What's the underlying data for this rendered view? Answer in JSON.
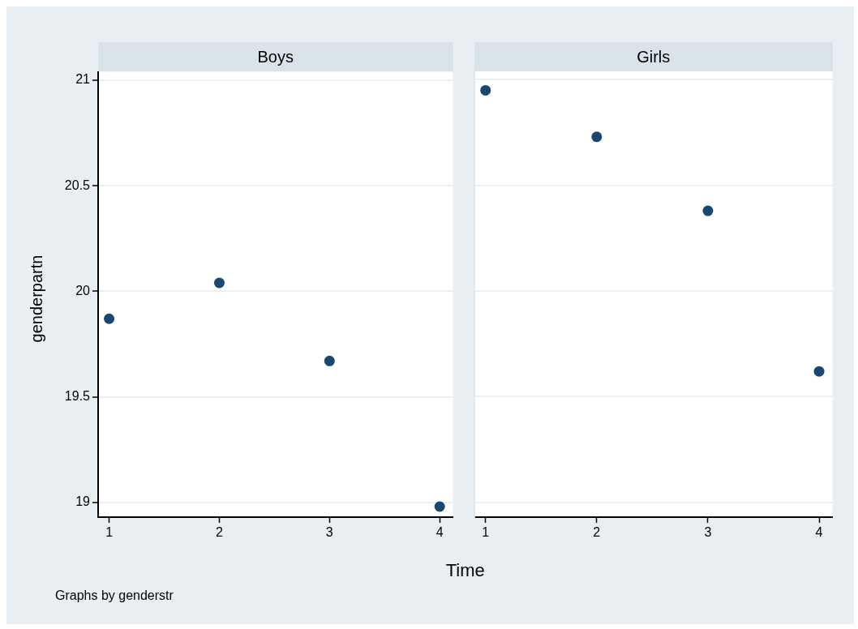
{
  "chart_data": [
    {
      "type": "scatter",
      "title": "Boys",
      "xlabel": "Time",
      "ylabel": "genderpartn",
      "annotations": [
        "Graphs by genderstr"
      ],
      "x": [
        1,
        2,
        3,
        4
      ],
      "series": [
        {
          "color": "#1a476f",
          "values": [
            19.87,
            20.04,
            19.67,
            18.98
          ]
        }
      ],
      "xlim": [
        0.9,
        4.12
      ],
      "xticks": [
        1,
        2,
        3,
        4
      ],
      "ylim": [
        18.93,
        21.04
      ],
      "yticks": [
        19,
        19.5,
        20,
        20.5,
        21
      ],
      "grid": "y",
      "legend": false,
      "marker": "circle"
    },
    {
      "type": "scatter",
      "title": "Girls",
      "x": [
        1,
        2,
        3,
        4
      ],
      "series": [
        {
          "color": "#1a476f",
          "values": [
            20.95,
            20.73,
            20.38,
            19.62
          ]
        }
      ],
      "xlim": [
        0.9,
        4.12
      ],
      "xticks": [
        1,
        2,
        3,
        4
      ],
      "ylim": [
        18.93,
        21.04
      ],
      "yticks": [
        19,
        19.5,
        20,
        20.5,
        21
      ],
      "grid": "y",
      "legend": false,
      "marker": "circle",
      "tick_labels": "x"
    }
  ]
}
